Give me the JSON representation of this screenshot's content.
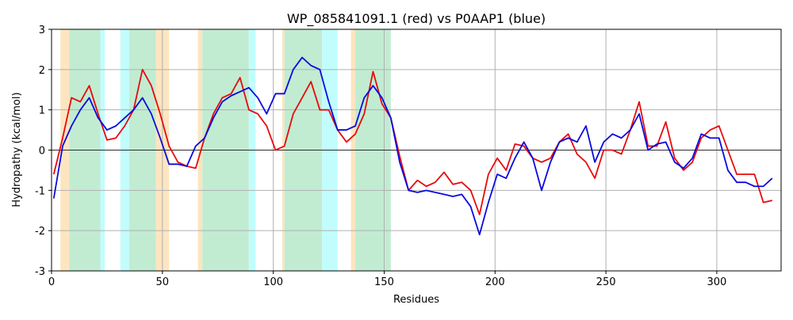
{
  "chart_data": {
    "type": "line",
    "title": "WP_085841091.1 (red) vs P0AAP1 (blue)",
    "x_label": "Residues",
    "y_label": "Hydropathy (kcal/mol)",
    "xlim": [
      0,
      329
    ],
    "ylim": [
      -3,
      3
    ],
    "xticks": [
      0,
      50,
      100,
      150,
      200,
      250,
      300
    ],
    "yticks": [
      -3,
      -2,
      -1,
      0,
      1,
      2,
      3
    ],
    "grid": true,
    "zero_line": true,
    "regions": [
      {
        "start": 4,
        "end": 8,
        "color": "#fde5c0"
      },
      {
        "start": 8,
        "end": 22,
        "color": "#c1ecd2"
      },
      {
        "start": 22,
        "end": 24,
        "color": "#c2fdfd"
      },
      {
        "start": 31,
        "end": 35,
        "color": "#c2fdfd"
      },
      {
        "start": 35,
        "end": 47,
        "color": "#c1ecd2"
      },
      {
        "start": 47,
        "end": 53,
        "color": "#fde5c0"
      },
      {
        "start": 66,
        "end": 68,
        "color": "#fde5c0"
      },
      {
        "start": 68,
        "end": 89,
        "color": "#c1ecd2"
      },
      {
        "start": 89,
        "end": 92,
        "color": "#c2fdfd"
      },
      {
        "start": 104,
        "end": 105,
        "color": "#fde5c0"
      },
      {
        "start": 105,
        "end": 122,
        "color": "#c1ecd2"
      },
      {
        "start": 122,
        "end": 129,
        "color": "#c2fdfd"
      },
      {
        "start": 135,
        "end": 137,
        "color": "#fde5c0"
      },
      {
        "start": 137,
        "end": 153,
        "color": "#c1ecd2"
      }
    ],
    "x": [
      1,
      5,
      9,
      13,
      17,
      21,
      25,
      29,
      33,
      37,
      41,
      45,
      49,
      53,
      57,
      61,
      65,
      69,
      73,
      77,
      81,
      85,
      89,
      93,
      97,
      101,
      105,
      109,
      113,
      117,
      121,
      125,
      129,
      133,
      137,
      141,
      145,
      149,
      153,
      157,
      161,
      165,
      169,
      173,
      177,
      181,
      185,
      189,
      193,
      197,
      201,
      205,
      209,
      213,
      217,
      221,
      225,
      229,
      233,
      237,
      241,
      245,
      249,
      253,
      257,
      261,
      265,
      269,
      273,
      277,
      281,
      285,
      289,
      293,
      297,
      301,
      305,
      309,
      313,
      317,
      321,
      325
    ],
    "series": [
      {
        "color": "#e8090b",
        "values": [
          -0.6,
          0.3,
          1.3,
          1.2,
          1.6,
          0.9,
          0.25,
          0.3,
          0.6,
          1.0,
          2.0,
          1.6,
          0.9,
          0.1,
          -0.3,
          -0.4,
          -0.45,
          0.3,
          0.9,
          1.3,
          1.4,
          1.8,
          1.0,
          0.9,
          0.6,
          0.0,
          0.1,
          0.9,
          1.3,
          1.7,
          1.0,
          1.0,
          0.5,
          0.2,
          0.4,
          0.9,
          1.95,
          1.15,
          0.8,
          -0.15,
          -1.0,
          -0.75,
          -0.9,
          -0.8,
          -0.55,
          -0.85,
          -0.8,
          -1.0,
          -1.6,
          -0.6,
          -0.2,
          -0.5,
          0.15,
          0.1,
          -0.2,
          -0.3,
          -0.2,
          0.2,
          0.4,
          -0.1,
          -0.3,
          -0.7,
          0.0,
          0.0,
          -0.1,
          0.5,
          1.2,
          0.1,
          0.1,
          0.7,
          -0.2,
          -0.5,
          -0.3,
          0.3,
          0.5,
          0.6,
          0.0,
          -0.6,
          -0.6,
          -0.6,
          -1.3,
          -1.25
        ]
      },
      {
        "color": "#0a0adf",
        "values": [
          -1.2,
          0.1,
          0.6,
          1.0,
          1.3,
          0.8,
          0.5,
          0.6,
          0.8,
          1.0,
          1.3,
          0.9,
          0.3,
          -0.35,
          -0.35,
          -0.4,
          0.1,
          0.3,
          0.8,
          1.2,
          1.35,
          1.45,
          1.55,
          1.3,
          0.9,
          1.4,
          1.4,
          2.0,
          2.3,
          2.1,
          2.0,
          1.2,
          0.5,
          0.5,
          0.6,
          1.3,
          1.6,
          1.3,
          0.8,
          -0.3,
          -1.0,
          -1.05,
          -1.0,
          -1.05,
          -1.1,
          -1.15,
          -1.1,
          -1.4,
          -2.1,
          -1.3,
          -0.6,
          -0.7,
          -0.2,
          0.2,
          -0.2,
          -1.0,
          -0.3,
          0.2,
          0.3,
          0.2,
          0.6,
          -0.3,
          0.2,
          0.4,
          0.3,
          0.5,
          0.9,
          0.0,
          0.15,
          0.2,
          -0.3,
          -0.45,
          -0.2,
          0.4,
          0.3,
          0.3,
          -0.5,
          -0.8,
          -0.8,
          -0.9,
          -0.9,
          -0.7
        ]
      }
    ]
  }
}
